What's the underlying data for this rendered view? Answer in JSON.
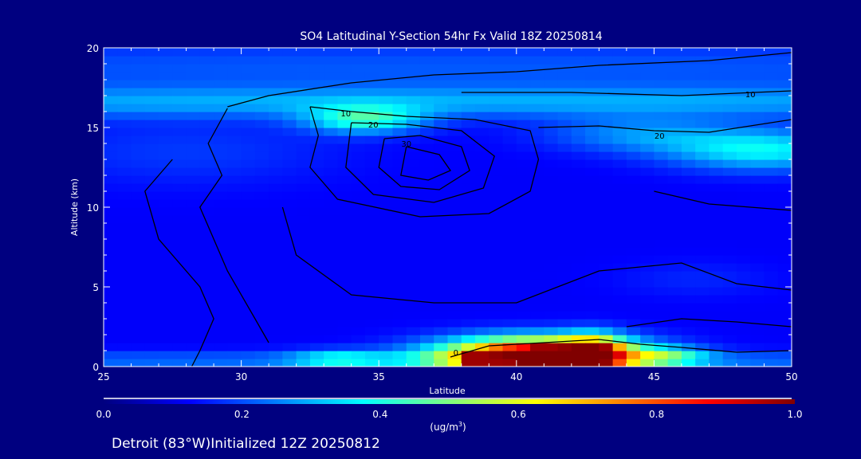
{
  "chart_data": {
    "type": "heatmap",
    "title": "SO4 Latitudinal Y-Section 54hr  Fx Valid 18Z 20250814",
    "xlabel": "Latitude",
    "ylabel": "Altitude (km)",
    "xlim": [
      25,
      50
    ],
    "ylim": [
      0,
      20
    ],
    "xticks": [
      "25",
      "30",
      "35",
      "40",
      "45",
      "50"
    ],
    "xtick_values": [
      25,
      30,
      35,
      40,
      45,
      50
    ],
    "yticks": [
      "0",
      "5",
      "10",
      "15",
      "20"
    ],
    "ytick_values": [
      0,
      5,
      10,
      15,
      20
    ],
    "colorbar": {
      "label": "(ug/m",
      "label_sup": "3",
      "label_end": ")",
      "range": [
        0,
        1
      ],
      "ticks": [
        "0.0",
        "0.2",
        "0.4",
        "0.6",
        "0.8",
        "1.0"
      ],
      "tick_values": [
        0,
        0.2,
        0.4,
        0.6,
        0.8,
        1.0
      ],
      "colors": [
        "#000080",
        "#0000ff",
        "#00ffff",
        "#ffff00",
        "#ff0000",
        "#800000"
      ]
    },
    "field": {
      "base": 0.12,
      "features": [
        {
          "lat": 37.5,
          "alt": 16.6,
          "slat": 30,
          "salt": 0.7,
          "value": 0.16
        },
        {
          "lat": 37.5,
          "alt": 18.8,
          "slat": 30,
          "salt": 1.2,
          "value": 0.09
        },
        {
          "lat": 34.5,
          "alt": 15.5,
          "slat": 1.5,
          "salt": 0.6,
          "value": 0.28
        },
        {
          "lat": 49,
          "alt": 13.6,
          "slat": 2.5,
          "salt": 0.9,
          "value": 0.25
        },
        {
          "lat": 44.5,
          "alt": 14.6,
          "slat": 2.5,
          "salt": 0.8,
          "value": 0.14
        },
        {
          "lat": 28,
          "alt": 13.5,
          "slat": 4,
          "salt": 1.5,
          "value": 0.06
        },
        {
          "lat": 37.5,
          "alt": 0.4,
          "slat": 30,
          "salt": 0.4,
          "value": 0.12
        },
        {
          "lat": 33.5,
          "alt": 0.5,
          "slat": 1.2,
          "salt": 0.4,
          "value": 0.18
        },
        {
          "lat": 40.8,
          "alt": 0.7,
          "slat": 2.5,
          "salt": 0.8,
          "value": 0.95
        },
        {
          "lat": 42.8,
          "alt": 0.9,
          "slat": 0.8,
          "salt": 0.8,
          "value": 0.4
        },
        {
          "lat": 45.5,
          "alt": 0.7,
          "slat": 1.0,
          "salt": 0.4,
          "value": 0.18
        },
        {
          "lat": 46.5,
          "alt": 5.5,
          "slat": 2,
          "salt": 0.8,
          "value": 0.04
        }
      ]
    },
    "contours": [
      {
        "label": "10",
        "label_at": [
          33.8,
          15.9
        ],
        "points": [
          [
            32.5,
            16.3
          ],
          [
            34,
            16
          ],
          [
            36,
            15.7
          ],
          [
            38.5,
            15.5
          ],
          [
            40.5,
            14.8
          ],
          [
            40.8,
            13
          ],
          [
            40.5,
            11
          ],
          [
            39,
            9.6
          ],
          [
            36.5,
            9.4
          ],
          [
            33.5,
            10.5
          ],
          [
            32.5,
            12.5
          ],
          [
            32.8,
            14.5
          ],
          [
            32.5,
            16.3
          ]
        ]
      },
      {
        "label": "20",
        "label_at": [
          34.8,
          15.2
        ],
        "points": [
          [
            34,
            15.3
          ],
          [
            36,
            15.2
          ],
          [
            38,
            14.8
          ],
          [
            39.2,
            13.2
          ],
          [
            38.8,
            11.2
          ],
          [
            37,
            10.3
          ],
          [
            34.8,
            10.8
          ],
          [
            33.8,
            12.5
          ],
          [
            34,
            15.3
          ]
        ]
      },
      {
        "label": "30",
        "label_at": [
          36,
          14
        ],
        "points": [
          [
            35.2,
            14.3
          ],
          [
            36.5,
            14.5
          ],
          [
            38,
            13.8
          ],
          [
            38.3,
            12.3
          ],
          [
            37.2,
            11.1
          ],
          [
            35.8,
            11.3
          ],
          [
            35,
            12.5
          ],
          [
            35.2,
            14.3
          ]
        ]
      },
      {
        "label": "",
        "label_at": null,
        "points": [
          [
            36,
            13.8
          ],
          [
            37.2,
            13.3
          ],
          [
            37.6,
            12.3
          ],
          [
            36.8,
            11.7
          ],
          [
            35.8,
            12
          ],
          [
            36,
            13.8
          ]
        ]
      },
      {
        "label": "",
        "label_at": null,
        "points": [
          [
            29.5,
            16.3
          ],
          [
            31,
            17
          ],
          [
            34,
            17.8
          ],
          [
            37,
            18.3
          ],
          [
            40,
            18.5
          ],
          [
            43,
            18.9
          ],
          [
            47,
            19.2
          ],
          [
            50,
            19.7
          ]
        ]
      },
      {
        "label": "10",
        "label_at": [
          48.5,
          17.1
        ],
        "points": [
          [
            38,
            17.2
          ],
          [
            42,
            17.2
          ],
          [
            46,
            17
          ],
          [
            50,
            17.3
          ]
        ]
      },
      {
        "label": "20",
        "label_at": [
          45.2,
          14.5
        ],
        "points": [
          [
            40.8,
            15
          ],
          [
            43,
            15.1
          ],
          [
            45,
            14.8
          ],
          [
            47,
            14.7
          ],
          [
            50,
            15.5
          ]
        ]
      },
      {
        "label": "",
        "label_at": null,
        "points": [
          [
            29.5,
            16.2
          ],
          [
            28.8,
            14
          ],
          [
            29.3,
            12
          ],
          [
            28.5,
            10
          ],
          [
            29,
            8
          ],
          [
            29.5,
            6
          ],
          [
            30.5,
            3
          ],
          [
            31,
            1.5
          ]
        ]
      },
      {
        "label": "",
        "label_at": null,
        "points": [
          [
            27.5,
            13
          ],
          [
            26.5,
            11
          ],
          [
            27,
            8
          ],
          [
            28.5,
            5
          ],
          [
            29,
            3
          ],
          [
            28.5,
            1
          ],
          [
            28.2,
            0
          ]
        ]
      },
      {
        "label": "",
        "label_at": null,
        "points": [
          [
            31.5,
            10
          ],
          [
            32,
            7
          ],
          [
            34,
            4.5
          ],
          [
            37,
            4
          ],
          [
            40,
            4
          ],
          [
            43,
            6
          ],
          [
            46,
            6.5
          ],
          [
            48,
            5.2
          ],
          [
            50,
            4.8
          ]
        ]
      },
      {
        "label": "",
        "label_at": null,
        "points": [
          [
            45,
            11
          ],
          [
            47,
            10.2
          ],
          [
            50,
            9.8
          ]
        ]
      },
      {
        "label": "",
        "label_at": null,
        "points": [
          [
            44,
            2.5
          ],
          [
            46,
            3
          ],
          [
            48,
            2.8
          ],
          [
            50,
            2.5
          ]
        ]
      },
      {
        "label": "0",
        "label_at": [
          37.8,
          0.9
        ],
        "points": [
          [
            37.6,
            0.6
          ],
          [
            39,
            1.3
          ],
          [
            41,
            1.5
          ],
          [
            43,
            1.7
          ],
          [
            44.5,
            1.4
          ],
          [
            46,
            1.2
          ],
          [
            48,
            0.9
          ],
          [
            50,
            1.0
          ]
        ]
      }
    ]
  },
  "footer": {
    "location_text": "Detroit (83°W)Initialized 12Z 20250812"
  }
}
